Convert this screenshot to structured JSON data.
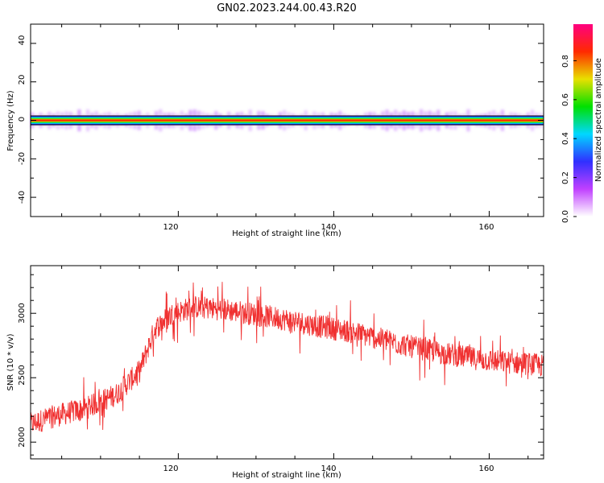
{
  "figure": {
    "title": "GN02.2023.244.00.43.R20"
  },
  "colorbar": {
    "label": "Normalized spectral amplitude",
    "ticks": [
      "0.0",
      "0.2",
      "0.4",
      "0.6",
      "0.8"
    ],
    "colormap": [
      "#ffffff",
      "#c040ff",
      "#3030ff",
      "#00d8ff",
      "#00e000",
      "#e8e000",
      "#ff2a00",
      "#ff0080"
    ]
  },
  "chart_data": [
    {
      "type": "heatmap",
      "title": "",
      "xlabel": "Height of straight line (km)",
      "ylabel": "Frequency (Hz)",
      "xlim": [
        101,
        167
      ],
      "ylim": [
        -50,
        50
      ],
      "xticks": [
        "120",
        "140",
        "160"
      ],
      "yticks": [
        "40",
        "20",
        "0",
        "-20",
        "-40"
      ],
      "band": {
        "center_frequency_hz": 0,
        "peak_amplitude": 1.0,
        "description_values": "spectral energy concentrated at 0 Hz across all heights"
      }
    },
    {
      "type": "line",
      "title": "",
      "xlabel": "Height of straight line (km)",
      "ylabel": "SNR (10 * v/v)",
      "xlim": [
        101,
        167
      ],
      "ylim": [
        1870,
        3370
      ],
      "xticks": [
        "120",
        "140",
        "160"
      ],
      "yticks": [
        "3000",
        "2500",
        "2000"
      ],
      "color": "#f03030",
      "trend": {
        "x": [
          101,
          104,
          108,
          112,
          115,
          117,
          119,
          122,
          126,
          130,
          134,
          138,
          142,
          146,
          150,
          154,
          158,
          162,
          165,
          167
        ],
        "y": [
          2140,
          2200,
          2260,
          2370,
          2550,
          2880,
          2990,
          3050,
          3030,
          2990,
          2950,
          2900,
          2860,
          2800,
          2740,
          2690,
          2650,
          2620,
          2610,
          2590
        ]
      }
    }
  ]
}
